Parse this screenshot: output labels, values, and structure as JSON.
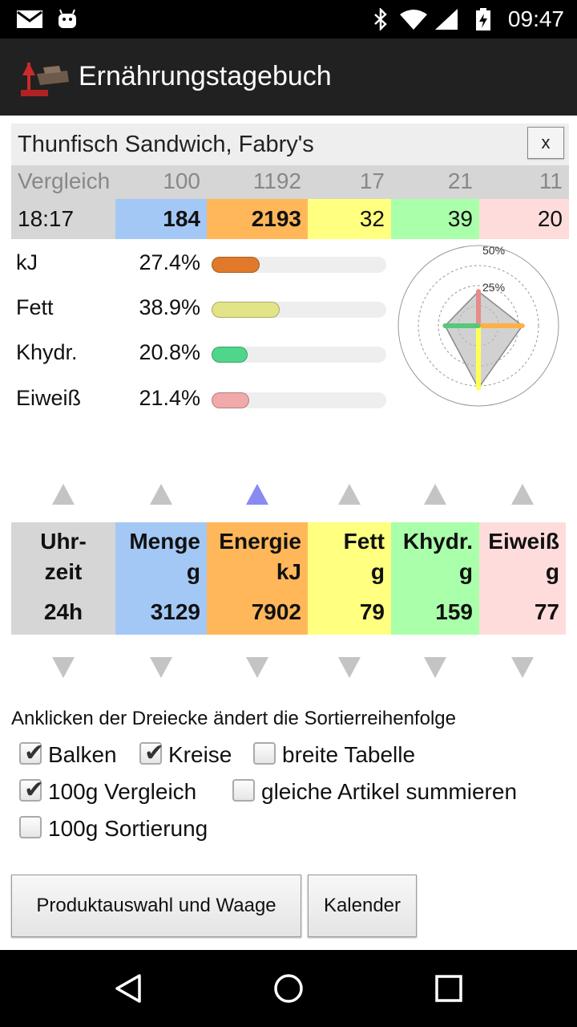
{
  "status_bar": {
    "time": "09:47",
    "icons": [
      "mail-icon",
      "android-icon",
      "bluetooth-icon",
      "wifi-icon",
      "signal-icon",
      "battery-charging-icon"
    ]
  },
  "app_bar": {
    "title": "Ernährungstagebuch",
    "logo_icon": "scale-icon"
  },
  "product": {
    "title": "Thunfisch Sandwich, Fabry's",
    "close_label": "x"
  },
  "comparison_row": {
    "label": "Vergleich",
    "values": [
      "100",
      "1192",
      "17",
      "21",
      "11"
    ]
  },
  "entry_row": {
    "time": "18:17",
    "values": [
      "184",
      "2193",
      "32",
      "39",
      "20"
    ]
  },
  "nutrients": [
    {
      "label": "kJ",
      "percent": "27.4%",
      "fraction": 0.274,
      "color": "#e07a2a"
    },
    {
      "label": "Fett",
      "percent": "38.9%",
      "fraction": 0.389,
      "color": "#e3e388"
    },
    {
      "label": "Khydr.",
      "percent": "20.8%",
      "fraction": 0.208,
      "color": "#4fd68a"
    },
    {
      "label": "Eiweiß",
      "percent": "21.4%",
      "fraction": 0.214,
      "color": "#f0aaaa"
    }
  ],
  "radar": {
    "ring_labels": [
      "50%",
      "25%"
    ]
  },
  "sort": {
    "active_column": 2
  },
  "summary_table": {
    "columns": [
      {
        "h1": "Uhr-",
        "h2": "zeit",
        "value": "24h"
      },
      {
        "h1": "Menge",
        "h2": "g",
        "value": "3129"
      },
      {
        "h1": "Energie",
        "h2": "kJ",
        "value": "7902"
      },
      {
        "h1": "Fett",
        "h2": "g",
        "value": "79"
      },
      {
        "h1": "Khydr.",
        "h2": "g",
        "value": "159"
      },
      {
        "h1": "Eiweiß",
        "h2": "g",
        "value": "77"
      }
    ]
  },
  "hint": "Anklicken der Dreiecke ändert die Sortierreihenfolge",
  "options": [
    {
      "label": "Balken",
      "checked": true
    },
    {
      "label": "Kreise",
      "checked": true
    },
    {
      "label": "breite Tabelle",
      "checked": false
    },
    {
      "label": "100g Vergleich",
      "checked": true
    },
    {
      "label": "gleiche Artikel summieren",
      "checked": false
    },
    {
      "label": "100g Sortierung",
      "checked": false
    }
  ],
  "buttons": {
    "product_scale": "Produktauswahl und Waage",
    "calendar": "Kalender"
  },
  "colors": {
    "quantity": "#a3c8f5",
    "energy": "#ffb75a",
    "fat": "#ffff80",
    "carbs": "#aaffaa",
    "protein": "#ffdcdc",
    "neutral": "#d6d6d6"
  }
}
